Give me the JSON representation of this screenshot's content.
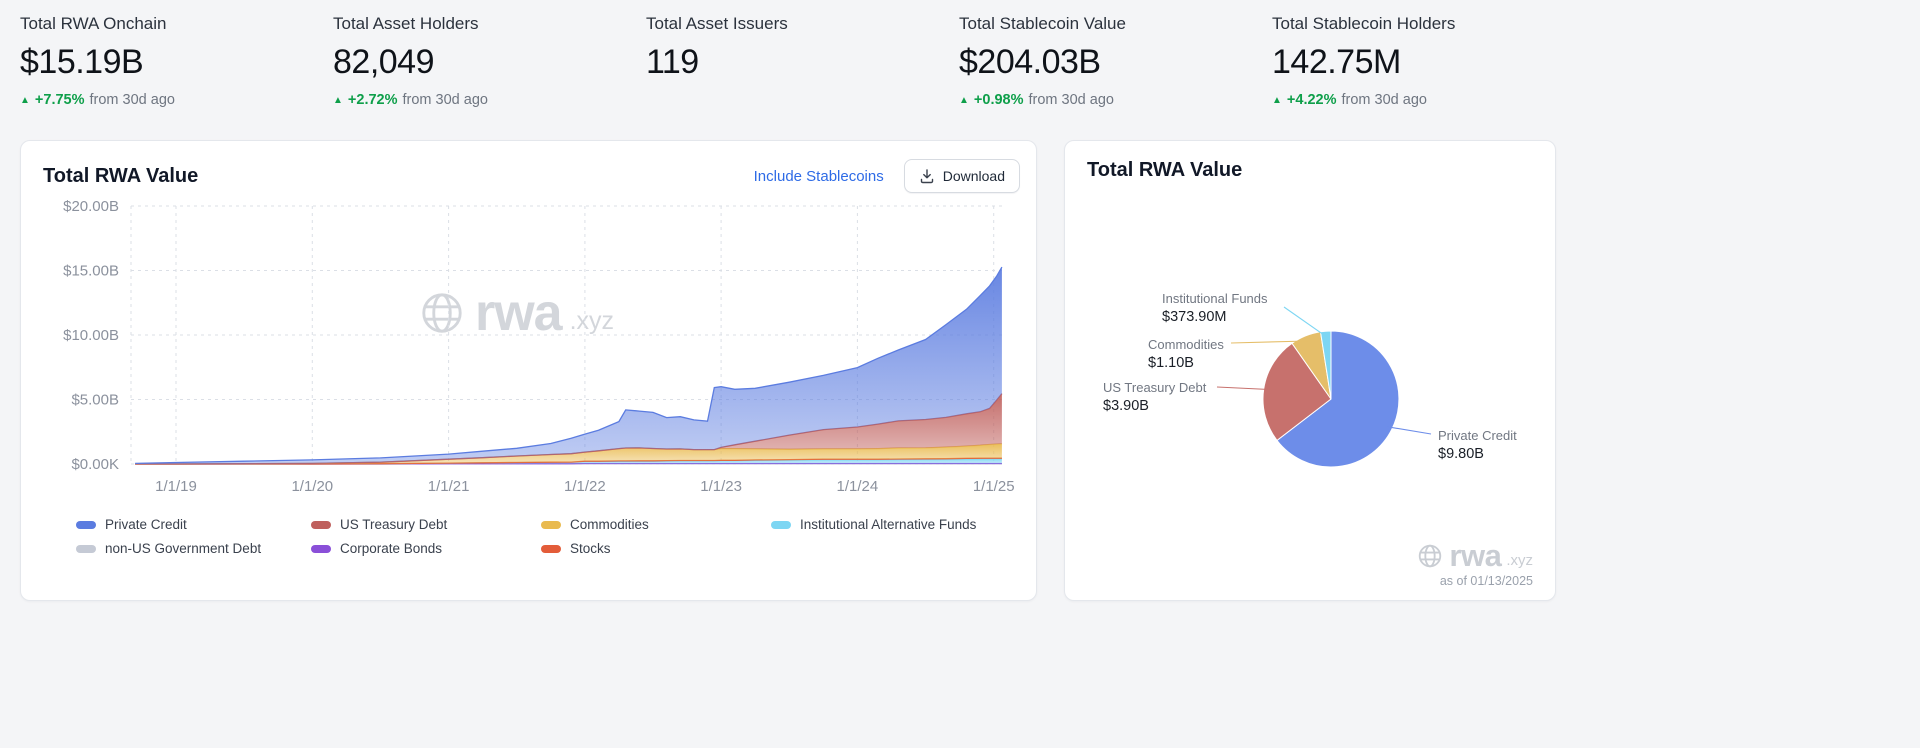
{
  "colors": {
    "background": "#f4f5f7",
    "card_background": "#ffffff",
    "delta_green": "#0e9f4a",
    "link_blue": "#2e6be6",
    "watermark_gray": "#d3d6db"
  },
  "stats": [
    {
      "label": "Total RWA Onchain",
      "value": "$15.19B",
      "delta": "+7.75%",
      "delta_suffix": "from 30d ago"
    },
    {
      "label": "Total Asset Holders",
      "value": "82,049",
      "delta": "+2.72%",
      "delta_suffix": "from 30d ago"
    },
    {
      "label": "Total Asset Issuers",
      "value": "119"
    },
    {
      "label": "Total Stablecoin Value",
      "value": "$204.03B",
      "delta": "+0.98%",
      "delta_suffix": "from 30d ago"
    },
    {
      "label": "Total Stablecoin Holders",
      "value": "142.75M",
      "delta": "+4.22%",
      "delta_suffix": "from 30d ago"
    }
  ],
  "area_card": {
    "title": "Total RWA Value",
    "link_label": "Include Stablecoins",
    "download_label": "Download",
    "watermark": {
      "brand": "rwa",
      "suffix": ".xyz"
    }
  },
  "pie_card": {
    "title": "Total RWA Value",
    "watermark": {
      "brand": "rwa",
      "suffix": ".xyz"
    },
    "as_of": "as of 01/13/2025"
  },
  "chart_data": [
    {
      "type": "area",
      "title": "Total RWA Value",
      "stacked": true,
      "grid": true,
      "legend_position": "bottom",
      "xlabel": "",
      "ylabel": "",
      "xlim": [
        2018.67,
        2025.09
      ],
      "ylim": [
        0,
        20
      ],
      "y_ticks": [
        "$0.00K",
        "$5.00B",
        "$10.00B",
        "$15.00B",
        "$20.00B"
      ],
      "y_tick_values": [
        0,
        5,
        10,
        15,
        20
      ],
      "x_ticks": [
        "1/1/19",
        "1/1/20",
        "1/1/21",
        "1/1/22",
        "1/1/23",
        "1/1/24",
        "1/1/25"
      ],
      "x_tick_years": [
        2019,
        2020,
        2021,
        2022,
        2023,
        2024,
        2025
      ],
      "x": [
        2018.7,
        2019.0,
        2019.5,
        2020.0,
        2020.5,
        2021.0,
        2021.25,
        2021.5,
        2021.75,
        2021.9,
        2022.0,
        2022.1,
        2022.25,
        2022.3,
        2022.4,
        2022.5,
        2022.6,
        2022.7,
        2022.8,
        2022.9,
        2022.95,
        2023.0,
        2023.1,
        2023.25,
        2023.5,
        2023.75,
        2024.0,
        2024.15,
        2024.3,
        2024.5,
        2024.65,
        2024.8,
        2024.9,
        2024.97,
        2025.02,
        2025.06
      ],
      "series": [
        {
          "name": "non-US Government Debt",
          "color": "#c5cad5",
          "values": [
            0,
            0,
            0,
            0,
            0,
            0.02,
            0.02,
            0.02,
            0.02,
            0.02,
            0.02,
            0.02,
            0.02,
            0.02,
            0.02,
            0.02,
            0.02,
            0.02,
            0.02,
            0.02,
            0.02,
            0.02,
            0.02,
            0.02,
            0.02,
            0.02,
            0.02,
            0.02,
            0.02,
            0.02,
            0.02,
            0.02,
            0.02,
            0.02,
            0.02,
            0.02
          ]
        },
        {
          "name": "Corporate Bonds",
          "color": "#8a4fd8",
          "values": [
            0,
            0,
            0,
            0,
            0,
            0,
            0,
            0,
            0,
            0,
            0.02,
            0.02,
            0.02,
            0.02,
            0.02,
            0.02,
            0.02,
            0.02,
            0.02,
            0.02,
            0.02,
            0.02,
            0.02,
            0.02,
            0.02,
            0.02,
            0.02,
            0.02,
            0.02,
            0.02,
            0.02,
            0.02,
            0.02,
            0.02,
            0.02,
            0.02
          ]
        },
        {
          "name": "Institutional Alternative Funds",
          "color": "#7dd6f3",
          "values": [
            0,
            0,
            0,
            0,
            0.02,
            0.05,
            0.07,
            0.1,
            0.12,
            0.13,
            0.15,
            0.15,
            0.17,
            0.17,
            0.18,
            0.18,
            0.19,
            0.2,
            0.2,
            0.2,
            0.2,
            0.22,
            0.22,
            0.25,
            0.27,
            0.3,
            0.3,
            0.3,
            0.32,
            0.33,
            0.34,
            0.35,
            0.36,
            0.37,
            0.37,
            0.37
          ]
        },
        {
          "name": "Stocks",
          "color": "#e35c39",
          "values": [
            0,
            0,
            0,
            0,
            0,
            0,
            0,
            0,
            0,
            0,
            0.03,
            0.03,
            0.03,
            0.03,
            0.03,
            0.03,
            0.03,
            0.03,
            0.03,
            0.03,
            0.03,
            0.03,
            0.03,
            0.03,
            0.03,
            0.03,
            0.03,
            0.03,
            0.03,
            0.03,
            0.03,
            0.05,
            0.05,
            0.05,
            0.05,
            0.05
          ]
        },
        {
          "name": "Commodities",
          "color": "#e9ba4f",
          "values": [
            0,
            0,
            0.02,
            0.05,
            0.12,
            0.3,
            0.4,
            0.5,
            0.6,
            0.65,
            0.7,
            0.8,
            0.95,
            1.0,
            1.0,
            0.95,
            0.9,
            0.9,
            0.85,
            0.85,
            0.85,
            0.9,
            0.9,
            0.85,
            0.8,
            0.8,
            0.8,
            0.82,
            0.85,
            0.85,
            0.9,
            0.95,
            1.0,
            1.05,
            1.08,
            1.1
          ]
        },
        {
          "name": "US Treasury Debt",
          "color": "#bf605d",
          "values": [
            0,
            0,
            0,
            0,
            0,
            0,
            0,
            0,
            0,
            0,
            0,
            0,
            0,
            0,
            0,
            0,
            0,
            0,
            0,
            0,
            0,
            0.1,
            0.3,
            0.6,
            1.1,
            1.5,
            1.7,
            1.9,
            2.1,
            2.2,
            2.3,
            2.5,
            2.6,
            2.8,
            3.4,
            3.9
          ]
        },
        {
          "name": "Private Credit",
          "color": "#5b7ce0",
          "values": [
            0.05,
            0.12,
            0.2,
            0.27,
            0.33,
            0.4,
            0.5,
            0.6,
            0.85,
            1.2,
            1.4,
            1.6,
            2.1,
            2.95,
            2.85,
            2.8,
            2.44,
            2.5,
            2.3,
            2.2,
            4.8,
            4.7,
            4.3,
            4.1,
            4.1,
            4.2,
            4.6,
            5.1,
            5.5,
            6.2,
            7.2,
            8.1,
            9.0,
            9.5,
            9.6,
            9.8
          ]
        }
      ],
      "legend": [
        {
          "name": "Private Credit",
          "color": "#5b7ce0"
        },
        {
          "name": "US Treasury Debt",
          "color": "#bf605d"
        },
        {
          "name": "Commodities",
          "color": "#e9ba4f"
        },
        {
          "name": "Institutional Alternative Funds",
          "color": "#7dd6f3"
        },
        {
          "name": "non-US Government Debt",
          "color": "#c5cad5"
        },
        {
          "name": "Corporate Bonds",
          "color": "#8a4fd8"
        },
        {
          "name": "Stocks",
          "color": "#e35c39"
        }
      ]
    },
    {
      "type": "pie",
      "title": "Total RWA Value",
      "start_angle_deg": -90,
      "clockwise": true,
      "as_of": "as of 01/13/2025",
      "slices": [
        {
          "name": "Private Credit",
          "label_value": "$9.80B",
          "value": 9.8,
          "color": "#6d8de9"
        },
        {
          "name": "US Treasury Debt",
          "label_value": "$3.90B",
          "value": 3.9,
          "color": "#c7716d"
        },
        {
          "name": "Commodities",
          "label_value": "$1.10B",
          "value": 1.1,
          "color": "#e5be69"
        },
        {
          "name": "Institutional Funds",
          "label_value": "$373.90M",
          "value": 0.3739,
          "color": "#7dd6f3"
        }
      ]
    }
  ]
}
